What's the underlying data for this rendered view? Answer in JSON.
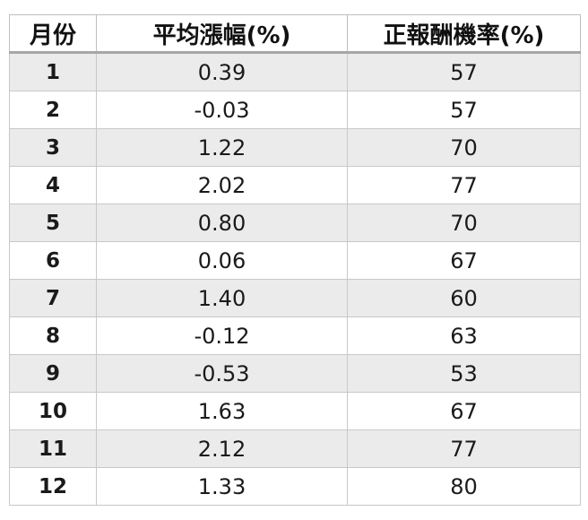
{
  "headers": [
    "月份",
    "平均漲幅(%)",
    "正報酬機率(%)"
  ],
  "rows": [
    [
      "1",
      "0.39",
      "57"
    ],
    [
      "2",
      "-0.03",
      "57"
    ],
    [
      "3",
      "1.22",
      "70"
    ],
    [
      "4",
      "2.02",
      "77"
    ],
    [
      "5",
      "0.80",
      "70"
    ],
    [
      "6",
      "0.06",
      "67"
    ],
    [
      "7",
      "1.40",
      "60"
    ],
    [
      "8",
      "-0.12",
      "63"
    ],
    [
      "9",
      "-0.53",
      "53"
    ],
    [
      "10",
      "1.63",
      "67"
    ],
    [
      "11",
      "2.12",
      "77"
    ],
    [
      "12",
      "1.33",
      "80"
    ]
  ]
}
